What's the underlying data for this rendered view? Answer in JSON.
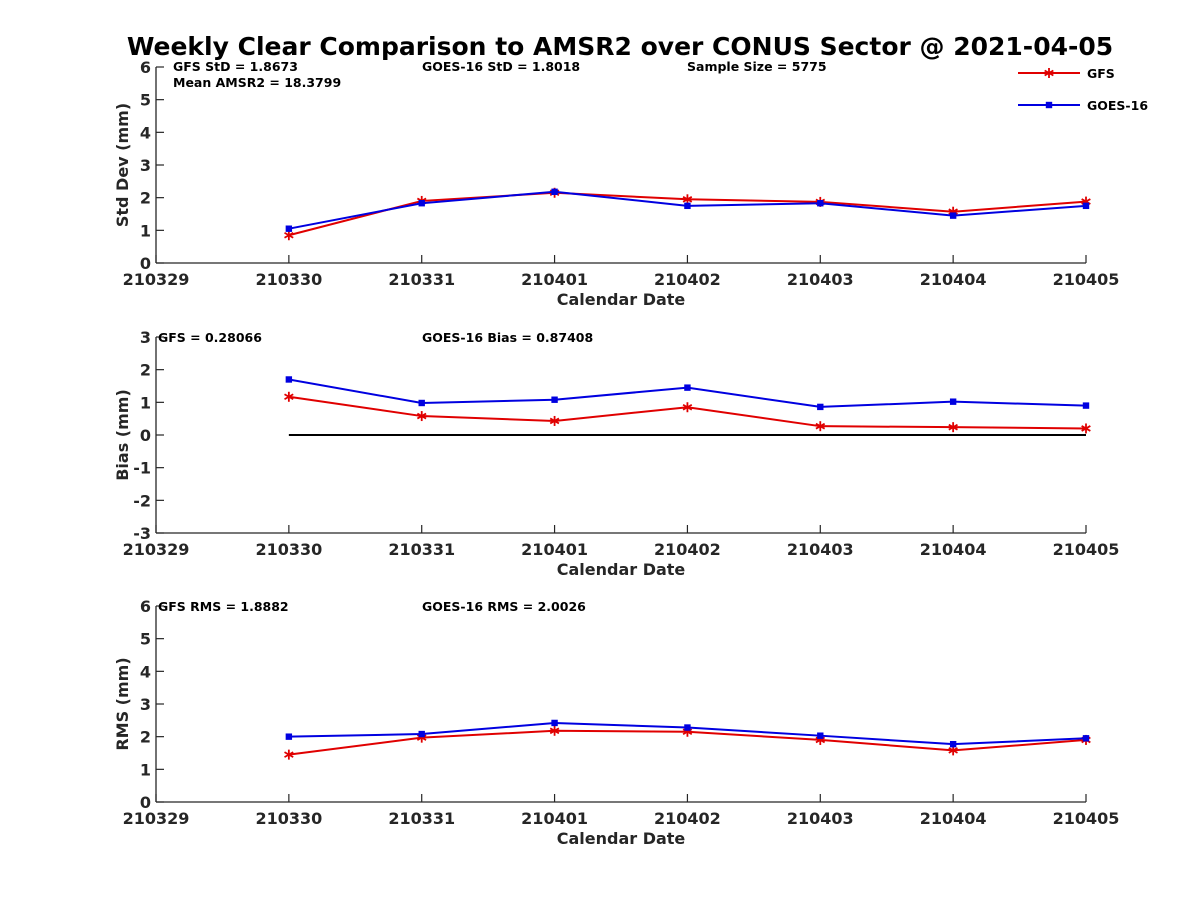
{
  "title": "Weekly Clear Comparison to AMSR2 over CONUS Sector @ 2021-04-05",
  "legend": [
    {
      "name": "GFS",
      "color": "#e00000",
      "marker": "asterisk"
    },
    {
      "name": "GOES-16",
      "color": "#0000e0",
      "marker": "square"
    }
  ],
  "chart_data": [
    {
      "type": "line",
      "id": "stddev",
      "xlabel": "Calendar Date",
      "ylabel": "Std Dev (mm)",
      "ylim": [
        0,
        6
      ],
      "yticks": [
        "0",
        "1",
        "2",
        "3",
        "4",
        "5",
        "6"
      ],
      "xticks": [
        "210329",
        "210330",
        "210331",
        "210401",
        "210402",
        "210403",
        "210404",
        "210405"
      ],
      "x_index": [
        1,
        2,
        3,
        4,
        5,
        6,
        7
      ],
      "series": [
        {
          "name": "GFS",
          "values": [
            0.85,
            1.9,
            2.15,
            1.95,
            1.87,
            1.57,
            1.88
          ]
        },
        {
          "name": "GOES-16",
          "values": [
            1.05,
            1.83,
            2.18,
            1.75,
            1.83,
            1.45,
            1.75
          ]
        }
      ],
      "annotations": [
        "GFS StD = 1.8673",
        "GOES-16 StD = 1.8018",
        "Sample Size = 5775",
        "Mean AMSR2 = 18.3799"
      ],
      "legend_position": "top-right"
    },
    {
      "type": "line",
      "id": "bias",
      "xlabel": "Calendar Date",
      "ylabel": "Bias (mm)",
      "ylim": [
        -3,
        3
      ],
      "yticks": [
        "-3",
        "-2",
        "-1",
        "0",
        "1",
        "2",
        "3"
      ],
      "xticks": [
        "210329",
        "210330",
        "210331",
        "210401",
        "210402",
        "210403",
        "210404",
        "210405"
      ],
      "x_index": [
        1,
        2,
        3,
        4,
        5,
        6,
        7
      ],
      "reference_line": 0,
      "series": [
        {
          "name": "GFS",
          "values": [
            1.17,
            0.58,
            0.43,
            0.85,
            0.27,
            0.24,
            0.2
          ]
        },
        {
          "name": "GOES-16",
          "values": [
            1.7,
            0.98,
            1.08,
            1.45,
            0.86,
            1.02,
            0.9
          ]
        }
      ],
      "annotations": [
        "GFS = 0.28066",
        "GOES-16 Bias  = 0.87408"
      ]
    },
    {
      "type": "line",
      "id": "rms",
      "xlabel": "Calendar Date",
      "ylabel": "RMS (mm)",
      "ylim": [
        0,
        6
      ],
      "yticks": [
        "0",
        "1",
        "2",
        "3",
        "4",
        "5",
        "6"
      ],
      "xticks": [
        "210329",
        "210330",
        "210331",
        "210401",
        "210402",
        "210403",
        "210404",
        "210405"
      ],
      "x_index": [
        1,
        2,
        3,
        4,
        5,
        6,
        7
      ],
      "series": [
        {
          "name": "GFS",
          "values": [
            1.45,
            1.97,
            2.18,
            2.15,
            1.9,
            1.58,
            1.9
          ]
        },
        {
          "name": "GOES-16",
          "values": [
            2.0,
            2.08,
            2.42,
            2.28,
            2.03,
            1.77,
            1.95
          ]
        }
      ],
      "annotations": [
        "GFS RMS = 1.8882",
        "GOES-16 RMS = 2.0026"
      ]
    }
  ]
}
